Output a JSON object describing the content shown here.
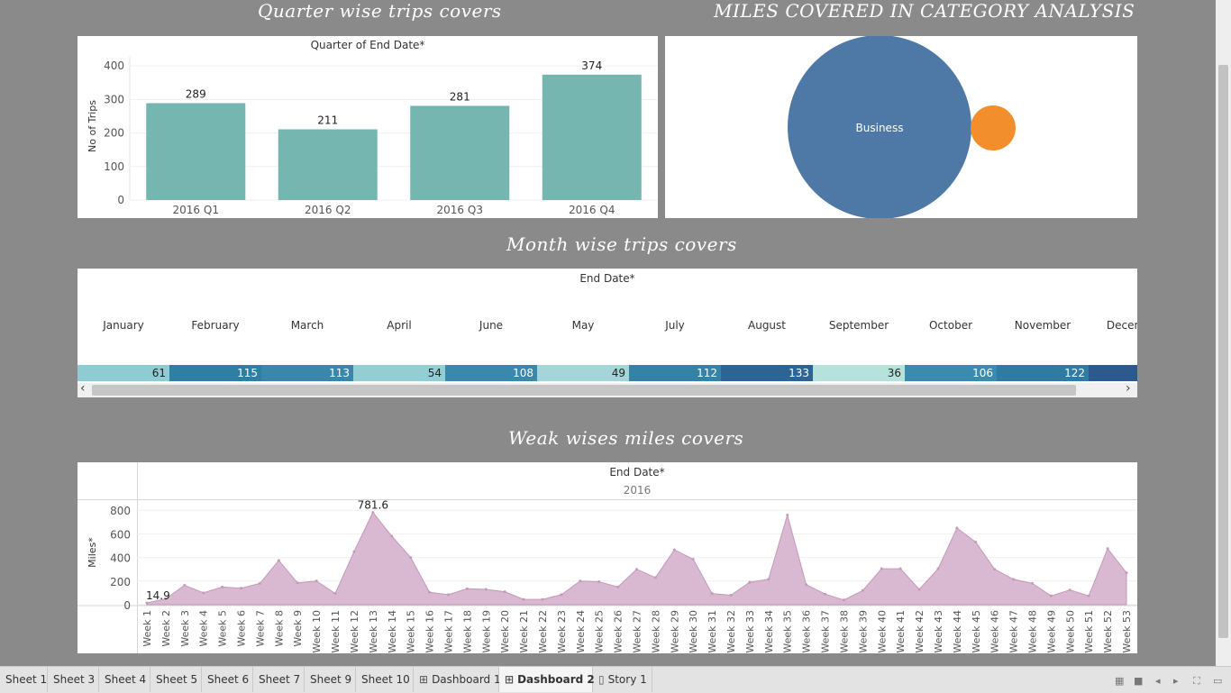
{
  "titles": {
    "quarter": "Quarter wise trips covers",
    "category": "MILES COVERED IN CATEGORY ANALYSIS",
    "month": "Month wise trips covers",
    "week": "Weak wises miles covers"
  },
  "quarter_chart": {
    "header": "Quarter of End Date*",
    "ylabel": "No of Trips",
    "yticks": [
      "400",
      "300",
      "200",
      "100",
      "0"
    ],
    "bar_color": "#76b6b0"
  },
  "category_chart": {
    "label": "Business",
    "colors": {
      "business": "#4e79a7",
      "other": "#f28e2b"
    }
  },
  "month_table": {
    "header": "End Date*",
    "months": [
      "January",
      "February",
      "March",
      "April",
      "June",
      "May",
      "July",
      "August",
      "September",
      "October",
      "November",
      "December"
    ],
    "values": [
      61,
      115,
      113,
      54,
      108,
      49,
      112,
      133,
      36,
      106,
      122,
      null
    ],
    "value_labels": [
      "61",
      "115",
      "113",
      "54",
      "108",
      "49",
      "112",
      "133",
      "36",
      "106",
      "122",
      ""
    ],
    "cell_colors": [
      "#8fcbd3",
      "#2f7ea3",
      "#3a87ab",
      "#93ced5",
      "#3a88ab",
      "#a3d5d9",
      "#3582a7",
      "#2c6594",
      "#b6e2dc",
      "#3a8bae",
      "#2f7ba2",
      "#2c5a8c"
    ],
    "scroll_left": "‹",
    "scroll_right": "›"
  },
  "week_chart": {
    "header": "End Date*",
    "year": "2016",
    "ylabel": "Miles*",
    "yticks": [
      "800",
      "600",
      "400",
      "200",
      "0"
    ],
    "area_color": "#d9b8d1",
    "line_color": "#c39ab8"
  },
  "chart_data": [
    {
      "type": "bar",
      "title": "Quarter wise trips covers",
      "xlabel": "Quarter of End Date*",
      "ylabel": "No of Trips",
      "categories": [
        "2016 Q1",
        "2016 Q2",
        "2016 Q3",
        "2016 Q4"
      ],
      "values": [
        289,
        211,
        281,
        374
      ],
      "labels": [
        "289",
        "211",
        "281",
        "374"
      ],
      "ylim": [
        0,
        430
      ]
    },
    {
      "type": "bubble",
      "title": "MILES COVERED IN CATEGORY ANALYSIS",
      "categories": [
        "Business",
        ""
      ],
      "relative_size": [
        1.0,
        0.25
      ]
    },
    {
      "type": "table",
      "title": "Month wise trips covers",
      "categories": [
        "January",
        "February",
        "March",
        "April",
        "June",
        "May",
        "July",
        "August",
        "September",
        "October",
        "November",
        "December"
      ],
      "values": [
        61,
        115,
        113,
        54,
        108,
        49,
        112,
        133,
        36,
        106,
        122,
        null
      ]
    },
    {
      "type": "area",
      "title": "Weak wises miles covers",
      "xlabel": "End Date*",
      "ylabel": "Miles*",
      "categories": [
        "Week 1",
        "Week 2",
        "Week 3",
        "Week 4",
        "Week 5",
        "Week 6",
        "Week 7",
        "Week 8",
        "Week 9",
        "Week 10",
        "Week 11",
        "Week 12",
        "Week 13",
        "Week 14",
        "Week 15",
        "Week 16",
        "Week 17",
        "Week 18",
        "Week 19",
        "Week 20",
        "Week 21",
        "Week 22",
        "Week 23",
        "Week 24",
        "Week 25",
        "Week 26",
        "Week 27",
        "Week 28",
        "Week 29",
        "Week 30",
        "Week 31",
        "Week 32",
        "Week 33",
        "Week 34",
        "Week 35",
        "Week 36",
        "Week 37",
        "Week 38",
        "Week 39",
        "Week 40",
        "Week 41",
        "Week 42",
        "Week 43",
        "Week 44",
        "Week 45",
        "Week 46",
        "Week 47",
        "Week 48",
        "Week 49",
        "Week 50",
        "Week 51",
        "Week 52",
        "Week 53"
      ],
      "values": [
        14.9,
        50,
        165,
        100,
        150,
        140,
        180,
        375,
        185,
        200,
        95,
        450,
        781.6,
        580,
        400,
        105,
        85,
        135,
        130,
        110,
        45,
        45,
        85,
        200,
        195,
        150,
        300,
        230,
        465,
        385,
        95,
        80,
        190,
        215,
        760,
        170,
        90,
        40,
        120,
        305,
        305,
        130,
        305,
        650,
        530,
        300,
        215,
        180,
        75,
        125,
        75,
        475,
        270
      ],
      "annotations": [
        "781.6",
        "14.9"
      ],
      "ylim": [
        0,
        840
      ]
    }
  ],
  "tabs": [
    {
      "label": "Sheet 1",
      "icon": ""
    },
    {
      "label": "Sheet 3",
      "icon": ""
    },
    {
      "label": "Sheet 4",
      "icon": ""
    },
    {
      "label": "Sheet 5",
      "icon": ""
    },
    {
      "label": "Sheet 6",
      "icon": ""
    },
    {
      "label": "Sheet 7",
      "icon": ""
    },
    {
      "label": "Sheet 9",
      "icon": ""
    },
    {
      "label": "Sheet 10",
      "icon": ""
    },
    {
      "label": "Dashboard 1",
      "icon": "⊞"
    },
    {
      "label": "Dashboard 2",
      "icon": "⊞"
    },
    {
      "label": "Story 1",
      "icon": "▯"
    }
  ],
  "active_tab": "Dashboard 2"
}
